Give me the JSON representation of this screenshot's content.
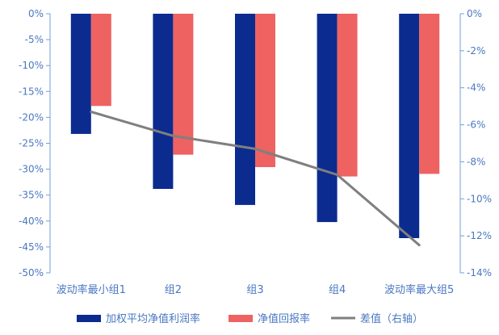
{
  "chart_data": {
    "type": "bar",
    "categories": [
      "波动率最小组1",
      "组2",
      "组3",
      "组4",
      "波动率最大组5"
    ],
    "series": [
      {
        "name": "加权平均净值利润率",
        "kind": "bar",
        "axis": "left",
        "color": "#0b2b8f",
        "values": [
          -23.2,
          -33.8,
          -36.9,
          -40.2,
          -43.3
        ]
      },
      {
        "name": "净值回报率",
        "kind": "bar",
        "axis": "left",
        "color": "#ee6262",
        "values": [
          -17.8,
          -27.2,
          -29.6,
          -31.4,
          -30.9
        ]
      },
      {
        "name": "差值（右轴）",
        "kind": "line",
        "axis": "right",
        "color": "#7f7f7f",
        "values": [
          -5.3,
          -6.6,
          -7.3,
          -8.7,
          -12.5
        ]
      }
    ],
    "y_left": {
      "min": -50,
      "max": 0,
      "ticks": [
        0,
        -5,
        -10,
        -15,
        -20,
        -25,
        -30,
        -35,
        -40,
        -45,
        -50
      ],
      "tick_labels": [
        "0%",
        "-5%",
        "-10%",
        "-15%",
        "-20%",
        "-25%",
        "-30%",
        "-35%",
        "-40%",
        "-45%",
        "-50%"
      ]
    },
    "y_right": {
      "min": -14,
      "max": 0,
      "ticks": [
        0,
        -2,
        -4,
        -6,
        -8,
        -10,
        -12,
        -14
      ],
      "tick_labels": [
        "0%",
        "-2%",
        "-4%",
        "-6%",
        "-8%",
        "-10%",
        "-12%",
        "-14%"
      ]
    },
    "title": "",
    "xlabel": "",
    "ylabel": "",
    "grid": false,
    "legend_position": "bottom",
    "axis_color": "#6f9fd8"
  }
}
